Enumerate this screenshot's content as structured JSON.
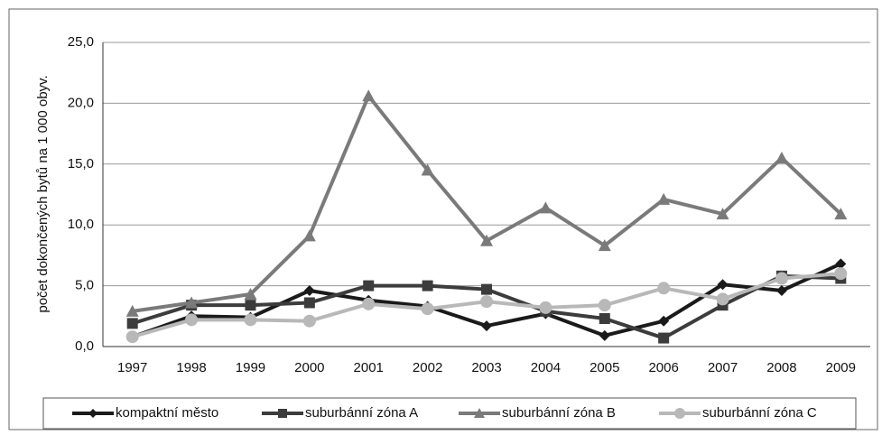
{
  "chart_data": {
    "type": "line",
    "ylabel": "počet dokončených bytů na 1 000 obyv.",
    "categories": [
      "1997",
      "1998",
      "1999",
      "2000",
      "2001",
      "2002",
      "2003",
      "2004",
      "2005",
      "2006",
      "2007",
      "2008",
      "2009"
    ],
    "series": [
      {
        "name": "kompaktní město",
        "color": "#1a1a1a",
        "marker": "diamond",
        "values": [
          0.8,
          2.5,
          2.4,
          4.6,
          3.8,
          3.3,
          1.7,
          2.7,
          0.9,
          2.1,
          5.1,
          4.6,
          6.8
        ]
      },
      {
        "name": "suburbánní zóna A",
        "color": "#3c3c3c",
        "marker": "square",
        "values": [
          1.9,
          3.4,
          3.4,
          3.6,
          5.0,
          5.0,
          4.7,
          2.9,
          2.3,
          0.7,
          3.4,
          5.8,
          5.6
        ]
      },
      {
        "name": "suburbánní zóna B",
        "color": "#7a7a7a",
        "marker": "triangle",
        "values": [
          2.9,
          3.6,
          4.3,
          9.1,
          20.6,
          14.5,
          8.7,
          11.4,
          8.3,
          12.1,
          10.9,
          15.5,
          10.9
        ]
      },
      {
        "name": "suburbánní zóna C",
        "color": "#b8b8b8",
        "marker": "circle",
        "values": [
          0.8,
          2.2,
          2.2,
          2.1,
          3.5,
          3.1,
          3.7,
          3.2,
          3.4,
          4.8,
          3.9,
          5.6,
          6.0
        ]
      }
    ],
    "ylim": [
      0,
      25
    ],
    "yticks": [
      {
        "value": 0,
        "label": "0,0"
      },
      {
        "value": 5,
        "label": "5,0"
      },
      {
        "value": 10,
        "label": "10,0"
      },
      {
        "value": 15,
        "label": "15,0"
      },
      {
        "value": 20,
        "label": "20,0"
      },
      {
        "value": 25,
        "label": "25,0"
      }
    ],
    "grid": true,
    "legend": "bottom"
  }
}
